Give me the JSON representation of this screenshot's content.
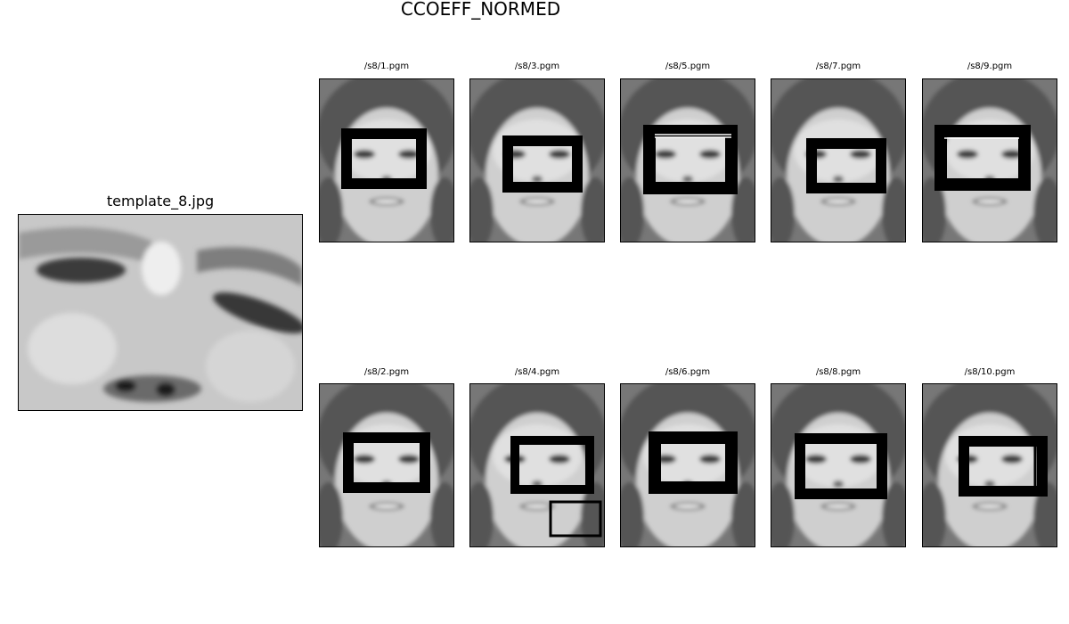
{
  "figure": {
    "suptitle": "CCOEFF_NORMED",
    "template": {
      "title": "template_8.jpg"
    },
    "panels": [
      {
        "title": "/s8/1.pgm"
      },
      {
        "title": "/s8/3.pgm"
      },
      {
        "title": "/s8/5.pgm"
      },
      {
        "title": "/s8/7.pgm"
      },
      {
        "title": "/s8/9.pgm"
      },
      {
        "title": "/s8/2.pgm"
      },
      {
        "title": "/s8/4.pgm"
      },
      {
        "title": "/s8/6.pgm"
      },
      {
        "title": "/s8/8.pgm"
      },
      {
        "title": "/s8/10.pgm"
      }
    ]
  }
}
